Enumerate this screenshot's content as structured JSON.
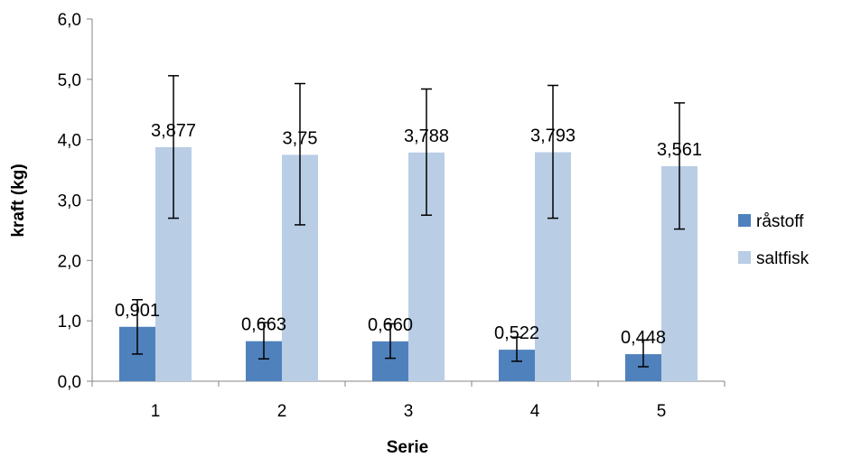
{
  "chart_data": {
    "type": "bar",
    "categories": [
      "1",
      "2",
      "3",
      "4",
      "5"
    ],
    "series": [
      {
        "name": "råstoff",
        "values": [
          0.901,
          0.663,
          0.66,
          0.522,
          0.448
        ],
        "labels": [
          "0,901",
          "0,663",
          "0,660",
          "0,522",
          "0,448"
        ],
        "err_low": [
          0.45,
          0.37,
          0.38,
          0.33,
          0.24
        ],
        "err_high": [
          1.35,
          0.97,
          0.95,
          0.73,
          0.68
        ],
        "color": "#4f81bd"
      },
      {
        "name": "saltfisk",
        "values": [
          3.877,
          3.75,
          3.788,
          3.793,
          3.561
        ],
        "labels": [
          "3,877",
          "3,75",
          "3,788",
          "3,793",
          "3,561"
        ],
        "err_low": [
          2.7,
          2.59,
          2.75,
          2.7,
          2.52
        ],
        "err_high": [
          5.06,
          4.93,
          4.84,
          4.9,
          4.61
        ],
        "color": "#b9cde5"
      }
    ],
    "xlabel": "Serie",
    "ylabel": "kraft (kg)",
    "ylim": [
      0,
      6
    ],
    "yticks": [
      0,
      1,
      2,
      3,
      4,
      5,
      6
    ],
    "ytick_labels": [
      "0,0",
      "1,0",
      "2,0",
      "3,0",
      "4,0",
      "5,0",
      "6,0"
    ],
    "grid": false,
    "legend_position": "right"
  }
}
